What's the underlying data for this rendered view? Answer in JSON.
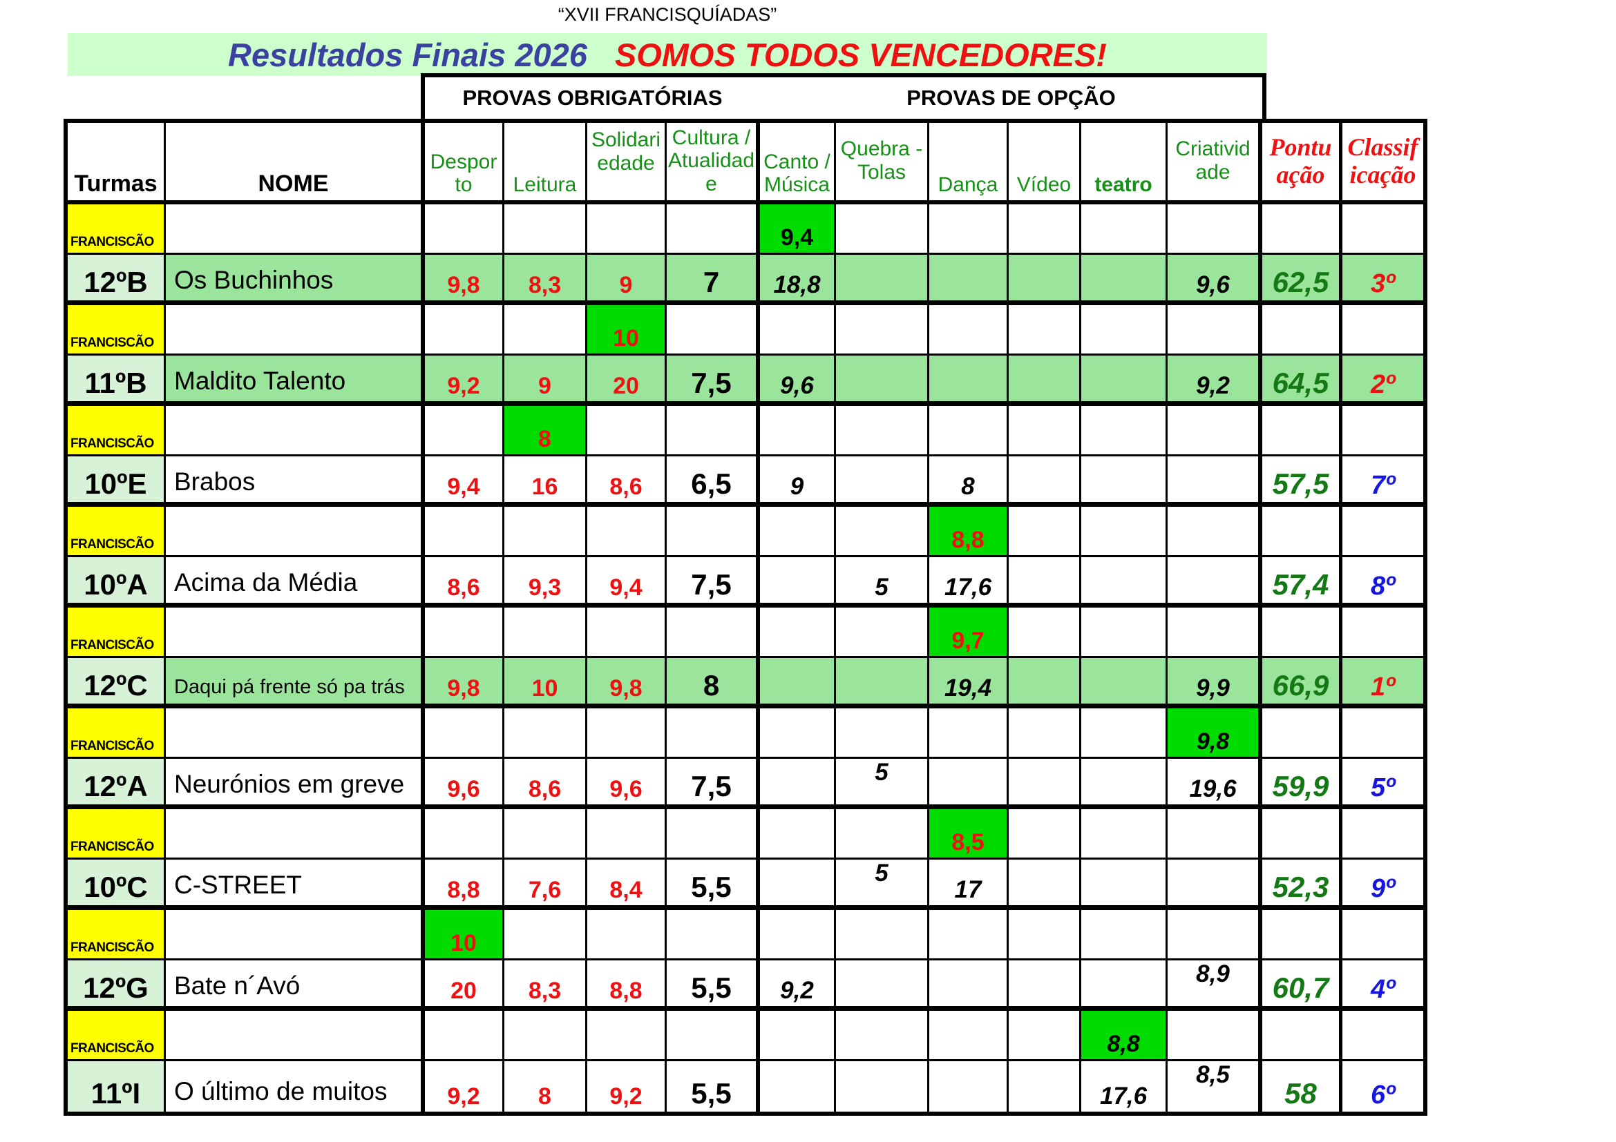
{
  "page_title": "“XVII FRANCISQUÍADAS”",
  "banner": {
    "title_left": "Resultados Finais 2026",
    "title_right": "SOMOS TODOS VENCEDORES!"
  },
  "group_headers": {
    "mandatory": "PROVAS OBRIGATÓRIAS",
    "optional": "PROVAS DE OPÇÃO"
  },
  "columns": [
    {
      "key": "turmas",
      "label": "Turmas"
    },
    {
      "key": "nome",
      "label": "NOME"
    },
    {
      "key": "desporto",
      "label": "Despor\nto"
    },
    {
      "key": "leitura",
      "label": "Leitura"
    },
    {
      "key": "solidariedade",
      "label": "Solidari\nedade",
      "valign": "top"
    },
    {
      "key": "cultura",
      "label": "Cultura /\nAtualidad\ne",
      "valign": "middle"
    },
    {
      "key": "canto",
      "label": "Canto /\nMúsica"
    },
    {
      "key": "quebra",
      "label": "Quebra -\nTolas",
      "valign": "middle"
    },
    {
      "key": "danca",
      "label": "Dança"
    },
    {
      "key": "video",
      "label": "Vídeo"
    },
    {
      "key": "teatro",
      "label": "teatro"
    },
    {
      "key": "criatividade",
      "label": "Criativid\nade",
      "valign": "middle"
    },
    {
      "key": "pontuacao",
      "label": "Pontu\nação",
      "valign": "middle"
    },
    {
      "key": "classificacao",
      "label": "Classif\nicação",
      "valign": "middle"
    }
  ],
  "rows": [
    {
      "type": "fr",
      "label": "FRANCISCÃO",
      "values": {
        "canto": {
          "v": "9,4",
          "s": "gvblack"
        }
      }
    },
    {
      "type": "team",
      "turma": "12ºB",
      "name": "Os Buchinhos",
      "highlight": true,
      "values": {
        "desporto": {
          "v": "9,8",
          "s": "req"
        },
        "leitura": {
          "v": "8,3",
          "s": "req"
        },
        "solidariedade": {
          "v": "9",
          "s": "req"
        },
        "cultura": {
          "v": "7",
          "s": "cult"
        },
        "canto": {
          "v": "18,8",
          "s": "opt"
        },
        "criatividade": {
          "v": "9,6",
          "s": "opt"
        },
        "pontuacao": {
          "v": "62,5",
          "s": "pont"
        },
        "classificacao": {
          "v": "3º",
          "s": "clsred"
        }
      }
    },
    {
      "type": "fr",
      "label": "FRANCISCÃO",
      "values": {
        "solidariedade": {
          "v": "10",
          "s": "gvred"
        }
      }
    },
    {
      "type": "team",
      "turma": "11ºB",
      "name": "Maldito Talento",
      "highlight": true,
      "values": {
        "desporto": {
          "v": "9,2",
          "s": "req"
        },
        "leitura": {
          "v": "9",
          "s": "req"
        },
        "solidariedade": {
          "v": "20",
          "s": "req"
        },
        "cultura": {
          "v": "7,5",
          "s": "cult"
        },
        "canto": {
          "v": "9,6",
          "s": "opt"
        },
        "criatividade": {
          "v": "9,2",
          "s": "opt"
        },
        "pontuacao": {
          "v": "64,5",
          "s": "pont"
        },
        "classificacao": {
          "v": "2º",
          "s": "clsred"
        }
      }
    },
    {
      "type": "fr",
      "label": "FRANCISCÃO",
      "values": {
        "leitura": {
          "v": "8",
          "s": "gvred"
        }
      }
    },
    {
      "type": "team",
      "turma": "10ºE",
      "name": "Brabos",
      "highlight": false,
      "values": {
        "desporto": {
          "v": "9,4",
          "s": "req"
        },
        "leitura": {
          "v": "16",
          "s": "req"
        },
        "solidariedade": {
          "v": "8,6",
          "s": "req"
        },
        "cultura": {
          "v": "6,5",
          "s": "cult"
        },
        "canto": {
          "v": "9",
          "s": "opt"
        },
        "danca": {
          "v": "8",
          "s": "opt"
        },
        "pontuacao": {
          "v": "57,5",
          "s": "pont"
        },
        "classificacao": {
          "v": "7º",
          "s": "clsblue"
        }
      }
    },
    {
      "type": "fr",
      "label": "FRANCISCÃO",
      "values": {
        "danca": {
          "v": "8,8",
          "s": "gvred"
        }
      }
    },
    {
      "type": "team",
      "turma": "10ºA",
      "name": "Acima da Média",
      "highlight": false,
      "values": {
        "desporto": {
          "v": "8,6",
          "s": "req"
        },
        "leitura": {
          "v": "9,3",
          "s": "req"
        },
        "solidariedade": {
          "v": "9,4",
          "s": "req"
        },
        "cultura": {
          "v": "7,5",
          "s": "cult"
        },
        "quebra": {
          "v": "5",
          "s": "opt"
        },
        "danca": {
          "v": "17,6",
          "s": "opt"
        },
        "pontuacao": {
          "v": "57,4",
          "s": "pont"
        },
        "classificacao": {
          "v": "8º",
          "s": "clsblue"
        }
      }
    },
    {
      "type": "fr",
      "label": "FRANCISCÃO",
      "values": {
        "danca": {
          "v": "9,7",
          "s": "gvred"
        }
      }
    },
    {
      "type": "team",
      "turma": "12ºC",
      "name": "Daqui pá frente só pa trás",
      "small_name": true,
      "highlight": true,
      "values": {
        "desporto": {
          "v": "9,8",
          "s": "req"
        },
        "leitura": {
          "v": "10",
          "s": "req"
        },
        "solidariedade": {
          "v": "9,8",
          "s": "req"
        },
        "cultura": {
          "v": "8",
          "s": "cult"
        },
        "danca": {
          "v": "19,4",
          "s": "opt"
        },
        "criatividade": {
          "v": "9,9",
          "s": "opt"
        },
        "pontuacao": {
          "v": "66,9",
          "s": "pont"
        },
        "classificacao": {
          "v": "1º",
          "s": "clsred"
        }
      }
    },
    {
      "type": "fr",
      "label": "FRANCISCÃO",
      "values": {
        "criatividade": {
          "v": "9,8",
          "s": "gvital"
        }
      }
    },
    {
      "type": "team",
      "turma": "12ºA",
      "name": "Neurónios em greve",
      "highlight": false,
      "values": {
        "desporto": {
          "v": "9,6",
          "s": "req"
        },
        "leitura": {
          "v": "8,6",
          "s": "req"
        },
        "solidariedade": {
          "v": "9,6",
          "s": "req"
        },
        "cultura": {
          "v": "7,5",
          "s": "cult"
        },
        "quebra": {
          "v": "5",
          "s": "opt",
          "raised": true
        },
        "criatividade": {
          "v": "19,6",
          "s": "opt"
        },
        "pontuacao": {
          "v": "59,9",
          "s": "pont"
        },
        "classificacao": {
          "v": "5º",
          "s": "clsblue"
        }
      }
    },
    {
      "type": "fr",
      "label": "FRANCISCÃO",
      "values": {
        "danca": {
          "v": "8,5",
          "s": "gvred"
        }
      }
    },
    {
      "type": "team",
      "turma": "10ºC",
      "name": "C-STREET",
      "highlight": false,
      "values": {
        "desporto": {
          "v": "8,8",
          "s": "req"
        },
        "leitura": {
          "v": "7,6",
          "s": "req"
        },
        "solidariedade": {
          "v": "8,4",
          "s": "req"
        },
        "cultura": {
          "v": "5,5",
          "s": "cult"
        },
        "quebra": {
          "v": "5",
          "s": "opt",
          "raised": true
        },
        "danca": {
          "v": "17",
          "s": "opt"
        },
        "pontuacao": {
          "v": "52,3",
          "s": "pont"
        },
        "classificacao": {
          "v": "9º",
          "s": "clsblue"
        }
      }
    },
    {
      "type": "fr",
      "label": "FRANCISCÃO",
      "values": {
        "desporto": {
          "v": "10",
          "s": "gvred"
        }
      }
    },
    {
      "type": "team",
      "turma": "12ºG",
      "name": "Bate n´Avó",
      "highlight": false,
      "values": {
        "desporto": {
          "v": "20",
          "s": "req"
        },
        "leitura": {
          "v": "8,3",
          "s": "req"
        },
        "solidariedade": {
          "v": "8,8",
          "s": "req"
        },
        "cultura": {
          "v": "5,5",
          "s": "cult"
        },
        "canto": {
          "v": "9,2",
          "s": "opt"
        },
        "criatividade": {
          "v": "8,9",
          "s": "opt",
          "raised": true
        },
        "pontuacao": {
          "v": "60,7",
          "s": "pont"
        },
        "classificacao": {
          "v": "4º",
          "s": "clsblue"
        }
      }
    },
    {
      "type": "fr",
      "label": "FRANCISCÃO",
      "values": {
        "teatro": {
          "v": "8,8",
          "s": "gvital"
        }
      }
    },
    {
      "type": "team",
      "turma": "11ºI",
      "name": "O último de muitos",
      "highlight": false,
      "values": {
        "desporto": {
          "v": "9,2",
          "s": "req"
        },
        "leitura": {
          "v": "8",
          "s": "req"
        },
        "solidariedade": {
          "v": "9,2",
          "s": "req"
        },
        "cultura": {
          "v": "5,5",
          "s": "cult"
        },
        "teatro": {
          "v": "17,6",
          "s": "opt"
        },
        "criatividade": {
          "v": "8,5",
          "s": "opt",
          "raised": true
        },
        "pontuacao": {
          "v": "58",
          "s": "pont"
        },
        "classificacao": {
          "v": "6º",
          "s": "clsblue"
        }
      }
    }
  ],
  "colors": {
    "yellow": "#ffff00",
    "bright_green": "#00dc00",
    "row_green": "#9be49b",
    "pale_green": "#d8f2d8",
    "banner_green": "#ccffcc",
    "red": "#ee1111",
    "dark_green": "#147814",
    "blue": "#1616e0",
    "title_blue": "#3a41a0",
    "header_green": "#169016"
  }
}
